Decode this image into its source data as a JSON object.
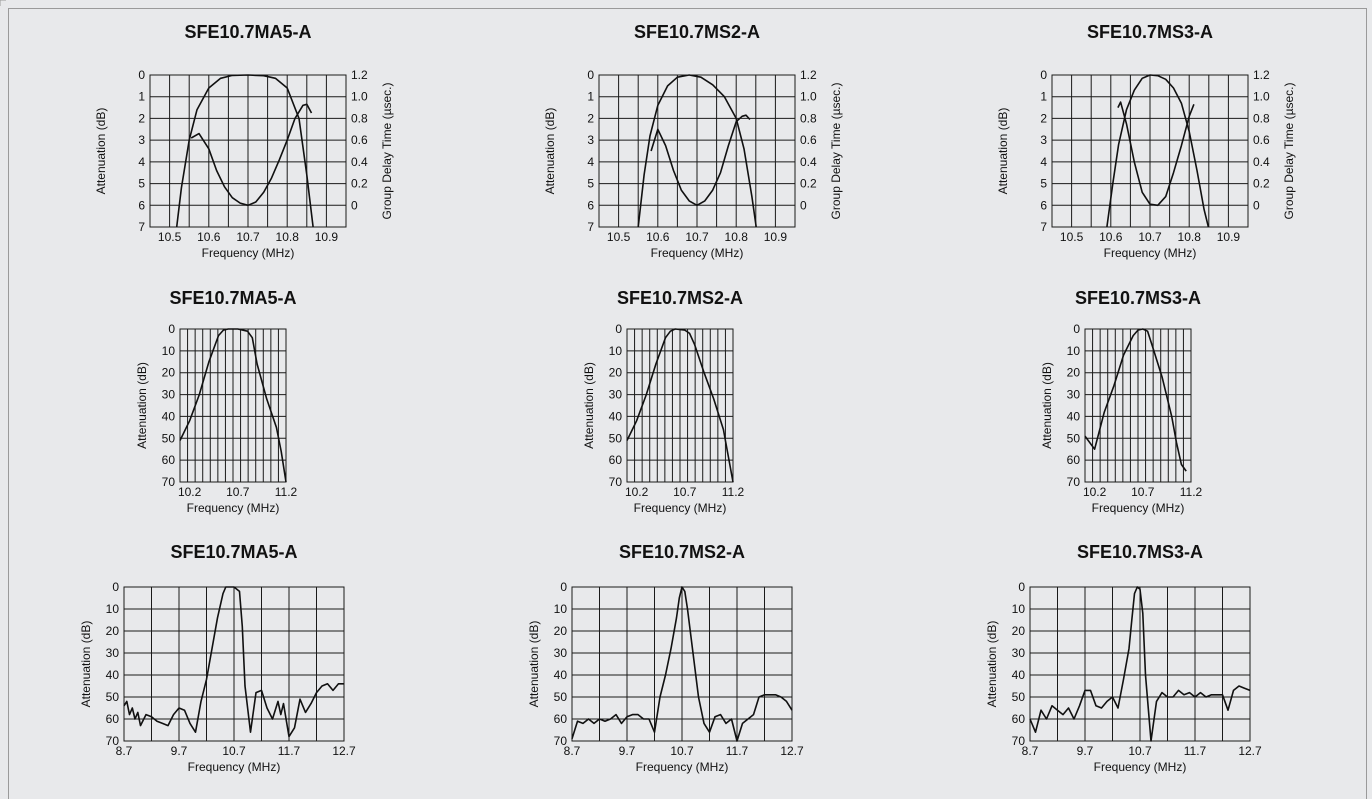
{
  "colors": {
    "background": "#e8e9eb",
    "ink": "#111111",
    "grid": "#1a1a1a"
  },
  "chart_data": [
    {
      "type": "line",
      "title": "SFE10.7MA5-A",
      "xlabel": "Frequency (MHz)",
      "ylabel": "Attenuation (dB)",
      "y2label": "Group Delay Time (µsec.)",
      "xlim": [
        10.45,
        10.95
      ],
      "ylim": [
        7,
        0
      ],
      "y2lim": [
        -0.2,
        1.2
      ],
      "xticks": [
        "10.5",
        "10.6",
        "10.7",
        "10.8",
        "10.9"
      ],
      "yticks": [
        "0",
        "1",
        "2",
        "3",
        "4",
        "5",
        "6",
        "7"
      ],
      "y2ticks": [
        "1.2",
        "1.0",
        "0.8",
        "0.6",
        "0.4",
        "0.2",
        "0"
      ],
      "grid": true,
      "series": [
        {
          "axis": "y",
          "x": [
            10.518,
            10.53,
            10.55,
            10.57,
            10.6,
            10.63,
            10.66,
            10.7,
            10.74,
            10.77,
            10.8,
            10.83,
            10.85,
            10.866
          ],
          "y": [
            7,
            5.2,
            3.0,
            1.6,
            0.6,
            0.15,
            0.02,
            0.0,
            0.03,
            0.15,
            0.6,
            2.0,
            4.6,
            7
          ]
        },
        {
          "axis": "y2",
          "x": [
            10.555,
            10.575,
            10.6,
            10.62,
            10.64,
            10.66,
            10.68,
            10.7,
            10.72,
            10.74,
            10.76,
            10.78,
            10.8,
            10.82,
            10.84,
            10.85,
            10.862
          ],
          "y": [
            0.62,
            0.66,
            0.52,
            0.32,
            0.17,
            0.07,
            0.02,
            0.0,
            0.03,
            0.12,
            0.25,
            0.42,
            0.6,
            0.8,
            0.92,
            0.93,
            0.85
          ]
        }
      ]
    },
    {
      "type": "line",
      "title": "SFE10.7MS2-A",
      "xlabel": "Frequency (MHz)",
      "ylabel": "Attenuation (dB)",
      "y2label": "Group Delay Time (µsec.)",
      "xlim": [
        10.45,
        10.95
      ],
      "ylim": [
        7,
        0
      ],
      "y2lim": [
        -0.2,
        1.2
      ],
      "xticks": [
        "10.5",
        "10.6",
        "10.7",
        "10.8",
        "10.9"
      ],
      "yticks": [
        "0",
        "1",
        "2",
        "3",
        "4",
        "5",
        "6",
        "7"
      ],
      "y2ticks": [
        "1.2",
        "1.0",
        "0.8",
        "0.6",
        "0.4",
        "0.2",
        "0"
      ],
      "grid": true,
      "series": [
        {
          "axis": "y",
          "x": [
            10.55,
            10.565,
            10.58,
            10.6,
            10.625,
            10.65,
            10.68,
            10.71,
            10.74,
            10.77,
            10.8,
            10.82,
            10.84,
            10.851
          ],
          "y": [
            7,
            4.6,
            2.8,
            1.4,
            0.5,
            0.1,
            0.0,
            0.1,
            0.45,
            1.0,
            2.0,
            3.4,
            5.6,
            7
          ]
        },
        {
          "axis": "y2",
          "x": [
            10.583,
            10.6,
            10.62,
            10.64,
            10.66,
            10.68,
            10.7,
            10.72,
            10.74,
            10.76,
            10.78,
            10.8,
            10.815,
            10.825,
            10.835
          ],
          "y": [
            0.5,
            0.7,
            0.55,
            0.32,
            0.14,
            0.04,
            0.0,
            0.04,
            0.14,
            0.3,
            0.55,
            0.77,
            0.82,
            0.83,
            0.79
          ]
        }
      ]
    },
    {
      "type": "line",
      "title": "SFE10.7MS3-A",
      "xlabel": "Frequency (MHz)",
      "ylabel": "Attenuation (dB)",
      "y2label": "Group Delay Time (µsec.)",
      "xlim": [
        10.45,
        10.95
      ],
      "ylim": [
        7,
        0
      ],
      "y2lim": [
        -0.2,
        1.2
      ],
      "xticks": [
        "10.5",
        "10.6",
        "10.7",
        "10.8",
        "10.9"
      ],
      "yticks": [
        "0",
        "1",
        "2",
        "3",
        "4",
        "5",
        "6",
        "7"
      ],
      "y2ticks": [
        "1.2",
        "1.0",
        "0.8",
        "0.6",
        "0.4",
        "0.2",
        "0"
      ],
      "grid": true,
      "series": [
        {
          "axis": "y",
          "x": [
            10.59,
            10.605,
            10.62,
            10.64,
            10.66,
            10.68,
            10.7,
            10.72,
            10.74,
            10.76,
            10.78,
            10.8,
            10.82,
            10.838,
            10.849
          ],
          "y": [
            7,
            5.0,
            3.2,
            1.6,
            0.7,
            0.15,
            0.0,
            0.03,
            0.2,
            0.6,
            1.3,
            2.6,
            4.4,
            6.2,
            7
          ]
        },
        {
          "axis": "y2",
          "x": [
            10.618,
            10.625,
            10.64,
            10.66,
            10.68,
            10.7,
            10.72,
            10.74,
            10.76,
            10.78,
            10.8,
            10.812
          ],
          "y": [
            0.9,
            0.95,
            0.75,
            0.4,
            0.12,
            0.01,
            0.0,
            0.08,
            0.3,
            0.55,
            0.82,
            0.93
          ]
        }
      ]
    },
    {
      "type": "line",
      "title": "SFE10.7MA5-A",
      "xlabel": "Frequency (MHz)",
      "ylabel": "Attenuation (dB)",
      "xlim": [
        10.1,
        11.2
      ],
      "ylim": [
        70,
        0
      ],
      "xticks": [
        "10.2",
        "10.7",
        "11.2"
      ],
      "yticks": [
        "0",
        "10",
        "20",
        "30",
        "40",
        "50",
        "60",
        "70"
      ],
      "grid": true,
      "series": [
        {
          "x": [
            10.1,
            10.2,
            10.3,
            10.4,
            10.5,
            10.55,
            10.6,
            10.7,
            10.8,
            10.85,
            10.9,
            11.0,
            11.1,
            11.15,
            11.2
          ],
          "y": [
            51,
            42,
            30,
            15,
            3,
            0.5,
            0,
            0,
            1,
            4,
            16,
            32,
            45,
            56,
            70
          ]
        }
      ]
    },
    {
      "type": "line",
      "title": "SFE10.7MS2-A",
      "xlabel": "Frequency (MHz)",
      "ylabel": "Attenuation (dB)",
      "xlim": [
        10.1,
        11.2
      ],
      "ylim": [
        70,
        0
      ],
      "xticks": [
        "10.2",
        "10.7",
        "11.2"
      ],
      "yticks": [
        "0",
        "10",
        "20",
        "30",
        "40",
        "50",
        "60",
        "70"
      ],
      "grid": true,
      "series": [
        {
          "x": [
            10.1,
            10.2,
            10.3,
            10.4,
            10.5,
            10.55,
            10.6,
            10.7,
            10.75,
            10.8,
            10.9,
            11.0,
            11.1,
            11.2
          ],
          "y": [
            51,
            42,
            30,
            16,
            4,
            1,
            0,
            0.5,
            2,
            7,
            20,
            32,
            46,
            70
          ]
        }
      ]
    },
    {
      "type": "line",
      "title": "SFE10.7MS3-A",
      "xlabel": "Frequency (MHz)",
      "ylabel": "Attenuation (dB)",
      "xlim": [
        10.1,
        11.2
      ],
      "ylim": [
        70,
        0
      ],
      "xticks": [
        "10.2",
        "10.7",
        "11.2"
      ],
      "yticks": [
        "0",
        "10",
        "20",
        "30",
        "40",
        "50",
        "60",
        "70"
      ],
      "grid": true,
      "series": [
        {
          "x": [
            10.1,
            10.2,
            10.3,
            10.4,
            10.5,
            10.6,
            10.65,
            10.7,
            10.75,
            10.8,
            10.9,
            11.0,
            11.05,
            11.1,
            11.15
          ],
          "y": [
            49,
            55,
            38,
            26,
            12,
            3,
            0.5,
            0,
            1,
            8,
            22,
            40,
            52,
            62,
            65
          ]
        }
      ]
    },
    {
      "type": "line",
      "title": "SFE10.7MA5-A",
      "xlabel": "Frequency (MHz)",
      "ylabel": "Attenuation (dB)",
      "xlim": [
        8.7,
        12.7
      ],
      "ylim": [
        70,
        0
      ],
      "xticks": [
        "8.7",
        "9.7",
        "10.7",
        "11.7",
        "12.7"
      ],
      "yticks": [
        "0",
        "10",
        "20",
        "30",
        "40",
        "50",
        "60",
        "70"
      ],
      "grid": true,
      "series": [
        {
          "x": [
            8.7,
            8.75,
            8.8,
            8.85,
            8.9,
            8.95,
            9.0,
            9.1,
            9.2,
            9.3,
            9.4,
            9.5,
            9.6,
            9.7,
            9.8,
            9.9,
            10.0,
            10.1,
            10.2,
            10.3,
            10.4,
            10.5,
            10.55,
            10.6,
            10.7,
            10.8,
            10.85,
            10.9,
            11.0,
            11.1,
            11.2,
            11.3,
            11.4,
            11.5,
            11.55,
            11.6,
            11.7,
            11.8,
            11.9,
            12.0,
            12.1,
            12.2,
            12.3,
            12.4,
            12.5,
            12.6,
            12.7
          ],
          "y": [
            54,
            52,
            58,
            55,
            60,
            57,
            63,
            58,
            59,
            61,
            62,
            63,
            58,
            55,
            56,
            62,
            66,
            52,
            42,
            28,
            14,
            3,
            0,
            0,
            0,
            2,
            18,
            45,
            66,
            48,
            47,
            55,
            60,
            52,
            58,
            53,
            68,
            64,
            51,
            57,
            53,
            48,
            45,
            44,
            47,
            44,
            44
          ]
        }
      ]
    },
    {
      "type": "line",
      "title": "SFE10.7MS2-A",
      "xlabel": "Frequency (MHz)",
      "ylabel": "Attenuation (dB)",
      "xlim": [
        8.7,
        12.7
      ],
      "ylim": [
        70,
        0
      ],
      "xticks": [
        "8.7",
        "9.7",
        "10.7",
        "11.7",
        "12.7"
      ],
      "yticks": [
        "0",
        "10",
        "20",
        "30",
        "40",
        "50",
        "60",
        "70"
      ],
      "grid": true,
      "series": [
        {
          "x": [
            8.7,
            8.8,
            8.9,
            9.0,
            9.1,
            9.2,
            9.3,
            9.4,
            9.5,
            9.6,
            9.7,
            9.8,
            9.9,
            10.0,
            10.1,
            10.2,
            10.3,
            10.4,
            10.5,
            10.6,
            10.65,
            10.7,
            10.75,
            10.8,
            10.9,
            11.0,
            11.1,
            11.2,
            11.3,
            11.4,
            11.5,
            11.6,
            11.7,
            11.8,
            11.9,
            12.0,
            12.1,
            12.2,
            12.3,
            12.4,
            12.5,
            12.6,
            12.7
          ],
          "y": [
            69,
            61,
            62,
            60,
            62,
            60,
            61,
            60,
            58,
            62,
            59,
            58,
            58,
            60,
            60,
            66,
            50,
            40,
            28,
            14,
            5,
            0,
            2,
            10,
            30,
            50,
            62,
            66,
            59,
            58,
            62,
            60,
            70,
            62,
            60,
            58,
            50,
            49,
            49,
            49,
            50,
            52,
            56
          ]
        }
      ]
    },
    {
      "type": "line",
      "title": "SFE10.7MS3-A",
      "xlabel": "Frequency (MHz)",
      "ylabel": "Attenuation (dB)",
      "xlim": [
        8.7,
        12.7
      ],
      "ylim": [
        70,
        0
      ],
      "xticks": [
        "8.7",
        "9.7",
        "10.7",
        "11.7",
        "12.7"
      ],
      "yticks": [
        "0",
        "10",
        "20",
        "30",
        "40",
        "50",
        "60",
        "70"
      ],
      "grid": true,
      "series": [
        {
          "x": [
            8.7,
            8.8,
            8.9,
            9.0,
            9.1,
            9.2,
            9.3,
            9.4,
            9.5,
            9.6,
            9.7,
            9.8,
            9.9,
            10.0,
            10.1,
            10.2,
            10.3,
            10.4,
            10.5,
            10.55,
            10.6,
            10.65,
            10.7,
            10.75,
            10.8,
            10.9,
            11.0,
            11.1,
            11.2,
            11.3,
            11.4,
            11.5,
            11.6,
            11.7,
            11.8,
            11.9,
            12.0,
            12.1,
            12.2,
            12.3,
            12.4,
            12.5,
            12.6,
            12.7
          ],
          "y": [
            60,
            66,
            56,
            60,
            54,
            56,
            58,
            55,
            60,
            54,
            47,
            47,
            54,
            55,
            52,
            50,
            55,
            42,
            28,
            15,
            3,
            0,
            1,
            12,
            40,
            70,
            52,
            48,
            50,
            50,
            47,
            49,
            48,
            50,
            48,
            50,
            49,
            49,
            49,
            56,
            47,
            45,
            46,
            47
          ]
        }
      ]
    }
  ]
}
